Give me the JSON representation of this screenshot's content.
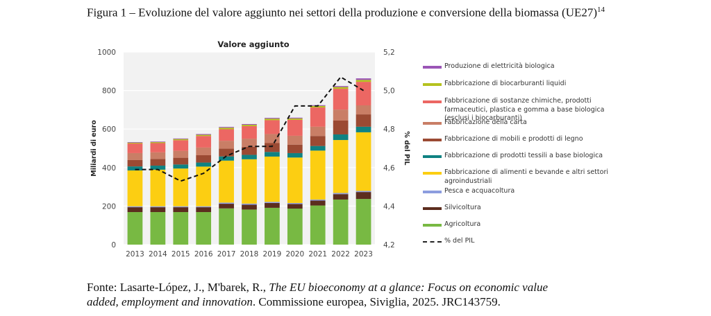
{
  "caption": {
    "text": "Figura 1 – Evoluzione del valore aggiunto nei settori della produzione e conversione della biomassa (UE27)",
    "footnote": "14"
  },
  "source": {
    "prefix": "Fonte: Lasarte-López, J., M'barek, R., ",
    "title": "The EU bioeconomy at a glance: Focus on economic value added, employment and innovation",
    "suffix": ". Commissione europea, Siviglia, 2025. JRC143759."
  },
  "chart_data": {
    "type": "bar",
    "stacked": true,
    "title": "Valore aggiunto",
    "xlabel": "",
    "ylabel": "Miliardi di euro",
    "ylabel_right": "% del PIL",
    "ylim": [
      0,
      1000
    ],
    "ylim_right": [
      4.2,
      5.2
    ],
    "yticks": [
      "0",
      "200",
      "400",
      "600",
      "800",
      "1000"
    ],
    "yticks_right": [
      "4,2",
      "4,4",
      "4,6",
      "4,8",
      "5,0",
      "5,2"
    ],
    "grid": true,
    "legend_position": "right",
    "categories": [
      "2013",
      "2014",
      "2015",
      "2016",
      "2017",
      "2018",
      "2019",
      "2020",
      "2021",
      "2022",
      "2023"
    ],
    "series": [
      {
        "name": "Agricoltura",
        "color": "#78b943",
        "values": [
          169,
          169,
          169,
          169,
          188,
          182,
          191,
          187,
          203,
          234,
          237
        ]
      },
      {
        "name": "Silvicoltura",
        "color": "#5c2d1e",
        "values": [
          25,
          25,
          25,
          25,
          24,
          25,
          25,
          24,
          26,
          28,
          36
        ]
      },
      {
        "name": "Pesca e acquacoltura",
        "color": "#8c9ddf",
        "values": [
          5,
          5,
          5,
          5,
          6,
          6,
          6,
          5,
          5,
          6,
          6
        ]
      },
      {
        "name": "Fabbricazione di alimenti e bevande e altri settori agroindustriali",
        "color": "#fcce12",
        "values": [
          186,
          190,
          196,
          206,
          218,
          230,
          235,
          236,
          254,
          275,
          304
        ]
      },
      {
        "name": "Fabbricazione di prodotti tessili a base biologica",
        "color": "#0f8282",
        "values": [
          21,
          21,
          21,
          21,
          22,
          23,
          24,
          23,
          24,
          29,
          29
        ]
      },
      {
        "name": "Fabbricazione di mobili e prodotti di legno",
        "color": "#9b4a33",
        "values": [
          33,
          35,
          35,
          38,
          40,
          42,
          46,
          44,
          52,
          72,
          64
        ]
      },
      {
        "name": "Fabbricazione della carta",
        "color": "#c97e66",
        "values": [
          36,
          34,
          36,
          40,
          41,
          42,
          47,
          46,
          48,
          57,
          47
        ]
      },
      {
        "name": "Fabbricazione di sostanze chimiche, prodotti farmaceutici, plastica e gomma a base biologica (esclusi i biocarburanti)",
        "color": "#ec6763",
        "values": [
          50,
          48,
          55,
          60,
          60,
          65,
          72,
          83,
          100,
          108,
          122
        ]
      },
      {
        "name": "Fabbricazione di biocarburanti liquidi",
        "color": "#b5c21f",
        "values": [
          4,
          5,
          6,
          6,
          8,
          7,
          8,
          7,
          8,
          9,
          10
        ]
      },
      {
        "name": "Produzione di elettricità biologica",
        "color": "#9b55b6",
        "values": [
          3,
          3,
          3,
          4,
          4,
          4,
          4,
          4,
          4,
          5,
          8
        ]
      }
    ],
    "line_series": {
      "name": "% del PIL",
      "axis": "right",
      "style": "dashed",
      "color": "#111111",
      "values": [
        4.59,
        4.59,
        4.53,
        4.57,
        4.66,
        4.71,
        4.71,
        4.92,
        4.92,
        5.07,
        5.0
      ]
    },
    "legend_order": [
      "Produzione di elettricità biologica",
      "Fabbricazione di biocarburanti liquidi",
      "Fabbricazione di sostanze chimiche, prodotti farmaceutici, plastica e gomma a base biologica (esclusi i biocarburanti)",
      "Fabbricazione della carta",
      "Fabbricazione di mobili e prodotti di legno",
      "Fabbricazione di prodotti tessili a base biologica",
      "Fabbricazione di alimenti e bevande e altri settori agroindustriali",
      "Pesca e acquacoltura",
      "Silvicoltura",
      "Agricoltura",
      "% del PIL"
    ]
  }
}
